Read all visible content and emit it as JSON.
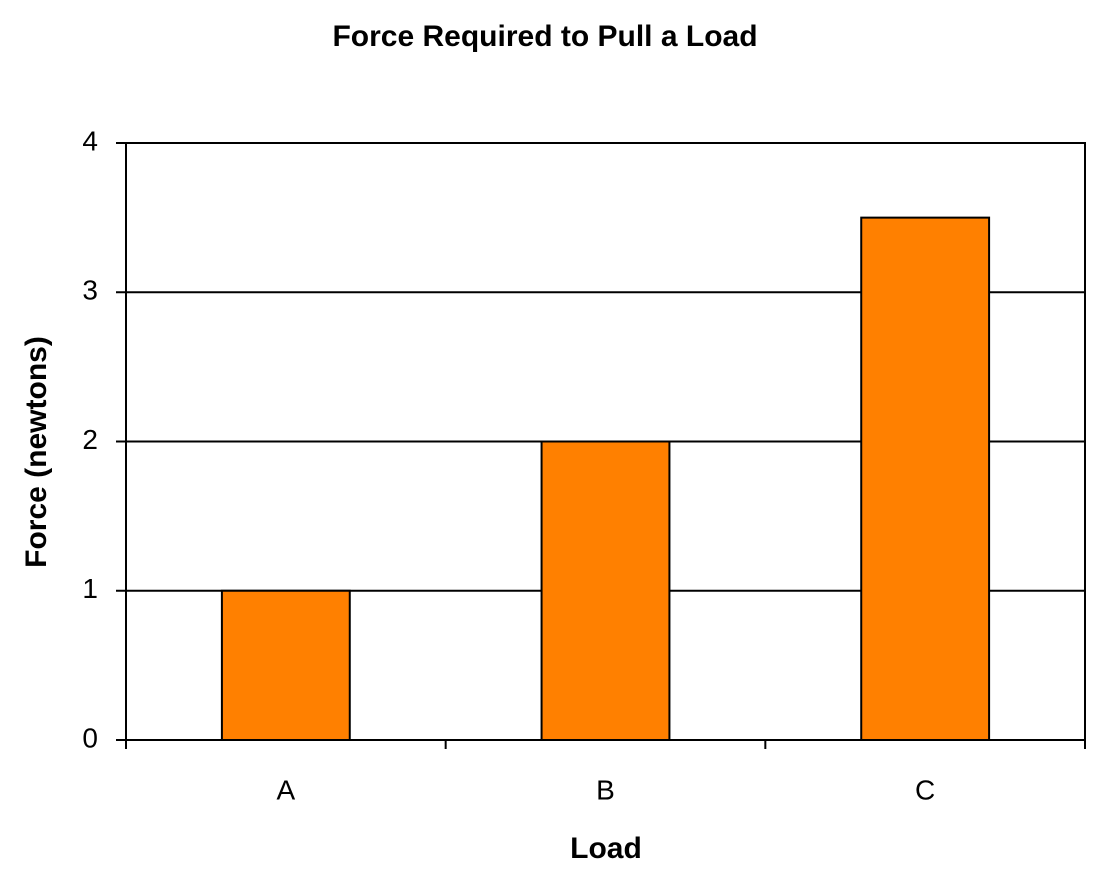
{
  "chart_data": {
    "type": "bar",
    "title": "Force Required to Pull a Load",
    "x_label": "Load",
    "y_label": "Force (newtons)",
    "categories": [
      "A",
      "B",
      "C"
    ],
    "values": [
      1,
      2,
      3.5
    ],
    "color": "#ff8000",
    "ylim": [
      0,
      4
    ],
    "yticks": [
      0,
      1,
      2,
      3,
      4
    ],
    "grid": true
  }
}
